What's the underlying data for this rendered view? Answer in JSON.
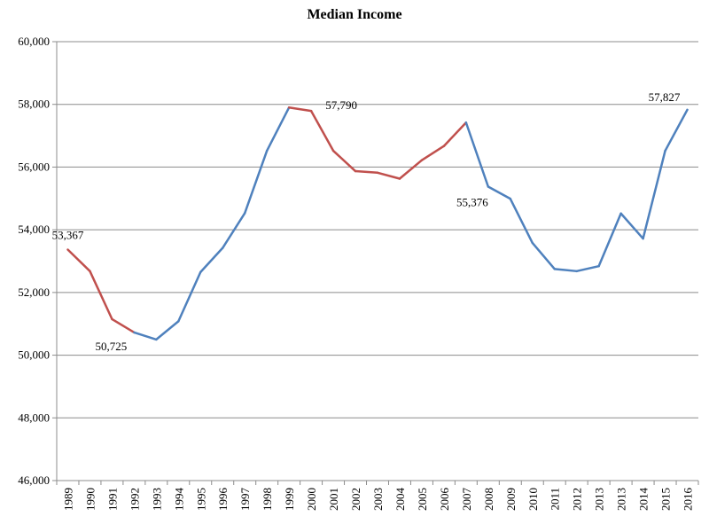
{
  "chart_data": {
    "type": "line",
    "title": "Median Income",
    "xlabel": "",
    "ylabel": "",
    "ylim": [
      46000,
      60000
    ],
    "yticks": [
      "46,000",
      "48,000",
      "50,000",
      "52,000",
      "54,000",
      "56,000",
      "58,000",
      "60,000"
    ],
    "categories": [
      "1989",
      "1990",
      "1991",
      "1992",
      "1993",
      "1994",
      "1995",
      "1996",
      "1997",
      "1998",
      "1999",
      "2000",
      "2001",
      "2002",
      "2003",
      "2004",
      "2005",
      "2006",
      "2007",
      "2008",
      "2009",
      "2010",
      "2011",
      "2012",
      "2013",
      "2013",
      "2014",
      "2015",
      "2016"
    ],
    "values": [
      53367,
      52680,
      51150,
      50725,
      50500,
      51080,
      52650,
      53420,
      54530,
      56520,
      57900,
      57790,
      56520,
      55870,
      55820,
      55630,
      56220,
      56670,
      57420,
      55376,
      54990,
      53580,
      52750,
      52680,
      52840,
      54520,
      53720,
      56520,
      57827
    ],
    "series_colors": {
      "blue": "#4f81bd",
      "red": "#c0504d"
    },
    "segment_colors": [
      "red",
      "red",
      "red",
      "blue",
      "blue",
      "blue",
      "blue",
      "blue",
      "blue",
      "blue",
      "red",
      "red",
      "red",
      "red",
      "red",
      "red",
      "red",
      "red",
      "blue",
      "blue",
      "blue",
      "blue",
      "blue",
      "blue",
      "blue",
      "blue",
      "blue",
      "blue"
    ],
    "data_labels": [
      {
        "index": 0,
        "text": "53,367"
      },
      {
        "index": 3,
        "text": "50,725"
      },
      {
        "index": 11,
        "text": "57,790"
      },
      {
        "index": 19,
        "text": "55,376"
      },
      {
        "index": 28,
        "text": "57,827"
      }
    ],
    "grid": true,
    "legend": "none"
  }
}
